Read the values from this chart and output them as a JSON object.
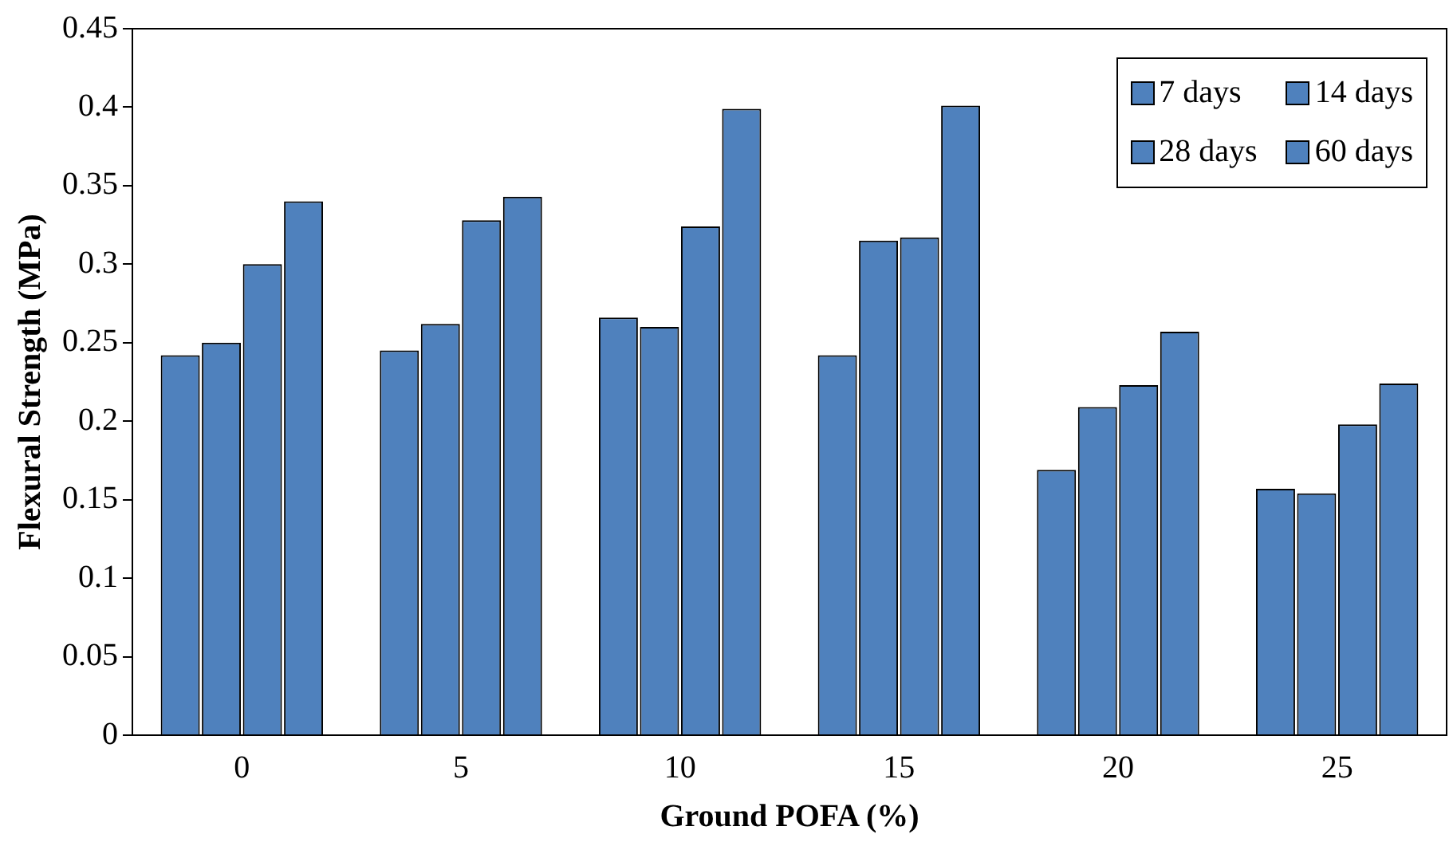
{
  "chart_data": {
    "type": "bar",
    "xlabel": "Ground POFA (%)",
    "ylabel": "Flexural Strength (MPa)",
    "categories": [
      "0",
      "5",
      "10",
      "15",
      "20",
      "25"
    ],
    "series": [
      {
        "name": "7 days",
        "color": "#4f81bd",
        "values": [
          0.242,
          0.245,
          0.266,
          0.242,
          0.169,
          0.157
        ]
      },
      {
        "name": "14 days",
        "color": "#4f81bd",
        "values": [
          0.25,
          0.262,
          0.26,
          0.315,
          0.209,
          0.154
        ]
      },
      {
        "name": "28 days",
        "color": "#4f81bd",
        "values": [
          0.3,
          0.328,
          0.324,
          0.317,
          0.223,
          0.198
        ]
      },
      {
        "name": "60 days",
        "color": "#4f81bd",
        "values": [
          0.34,
          0.343,
          0.399,
          0.401,
          0.257,
          0.224
        ]
      }
    ],
    "ylim": [
      0,
      0.45
    ],
    "yticks": [
      0,
      0.05,
      0.1,
      0.15,
      0.2,
      0.25,
      0.3,
      0.35,
      0.4,
      0.45
    ],
    "grid": false,
    "legend": "top right"
  }
}
